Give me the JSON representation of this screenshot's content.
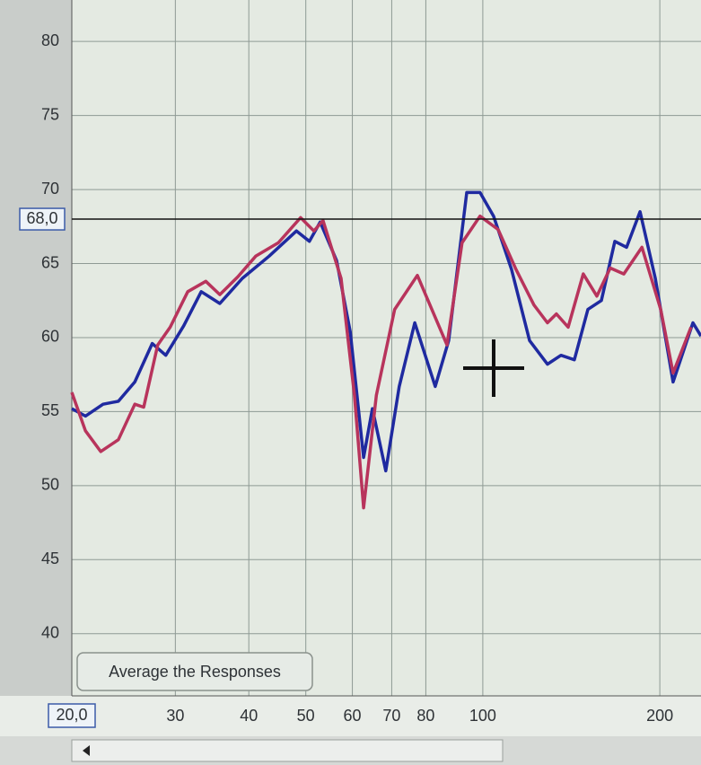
{
  "chart_data": {
    "type": "line",
    "x_scale": "log",
    "grid": true,
    "xlim": [
      20,
      235
    ],
    "ylim": [
      35.8,
      82.8
    ],
    "xticks": [
      30,
      40,
      50,
      60,
      70,
      80,
      100,
      200
    ],
    "yticks": [
      40,
      45,
      50,
      55,
      60,
      65,
      70,
      75,
      80
    ],
    "cursor": {
      "y": {
        "value": 68,
        "label": "68,0"
      },
      "x": {
        "value": 20,
        "label": "20,0"
      }
    },
    "button": "Average the Responses",
    "series": [
      {
        "color": "#1f2aa0",
        "x": [
          20,
          21.1,
          22.6,
          24.0,
          25.6,
          27.4,
          28.9,
          31.0,
          33.2,
          35.7,
          39.0,
          43.3,
          48.2,
          50.7,
          52.9,
          56.4,
          59.5,
          62.7,
          64.9,
          68.4,
          72.1,
          76.6,
          83.0,
          87.5,
          93.9,
          98.9,
          104.3,
          111.9,
          120.1,
          128.8,
          135.8,
          143.1,
          150.9,
          159.1,
          167.7,
          175.6,
          185.1,
          196.5,
          210.7,
          227.7,
          235
        ],
        "values": [
          55.2,
          54.7,
          55.5,
          55.7,
          57.0,
          59.6,
          58.8,
          60.8,
          63.1,
          62.3,
          64.0,
          65.5,
          67.2,
          66.5,
          67.8,
          65.2,
          60.4,
          51.9,
          55.2,
          51.0,
          56.7,
          61.0,
          56.7,
          59.8,
          69.8,
          69.8,
          68.2,
          64.6,
          59.8,
          58.2,
          58.8,
          58.5,
          61.9,
          62.5,
          66.5,
          66.1,
          68.5,
          64.0,
          57.0,
          61.0,
          60.1
        ]
      },
      {
        "color": "#b8345c",
        "x": [
          20,
          21.1,
          22.4,
          24.0,
          25.6,
          26.5,
          28.0,
          29.4,
          31.5,
          33.8,
          35.7,
          38.3,
          41.1,
          44.9,
          49.0,
          51.6,
          53.5,
          57.4,
          60.5,
          62.7,
          65.9,
          70.8,
          77.4,
          86.9,
          92.2,
          98.9,
          106.2,
          113.9,
          122.2,
          128.8,
          133.4,
          139.7,
          148.2,
          156.3,
          164.7,
          173.7,
          186.5,
          200.7,
          210.7,
          226
        ],
        "values": [
          56.3,
          53.7,
          52.3,
          53.1,
          55.5,
          55.3,
          59.5,
          60.7,
          63.1,
          63.8,
          62.9,
          64.1,
          65.5,
          66.4,
          68.1,
          67.2,
          67.9,
          64.0,
          56.1,
          48.5,
          56.1,
          61.9,
          64.2,
          59.5,
          66.4,
          68.2,
          67.3,
          64.6,
          62.2,
          61.0,
          61.6,
          60.7,
          64.3,
          62.8,
          64.7,
          64.3,
          66.1,
          61.9,
          57.6,
          60.7
        ]
      }
    ]
  }
}
